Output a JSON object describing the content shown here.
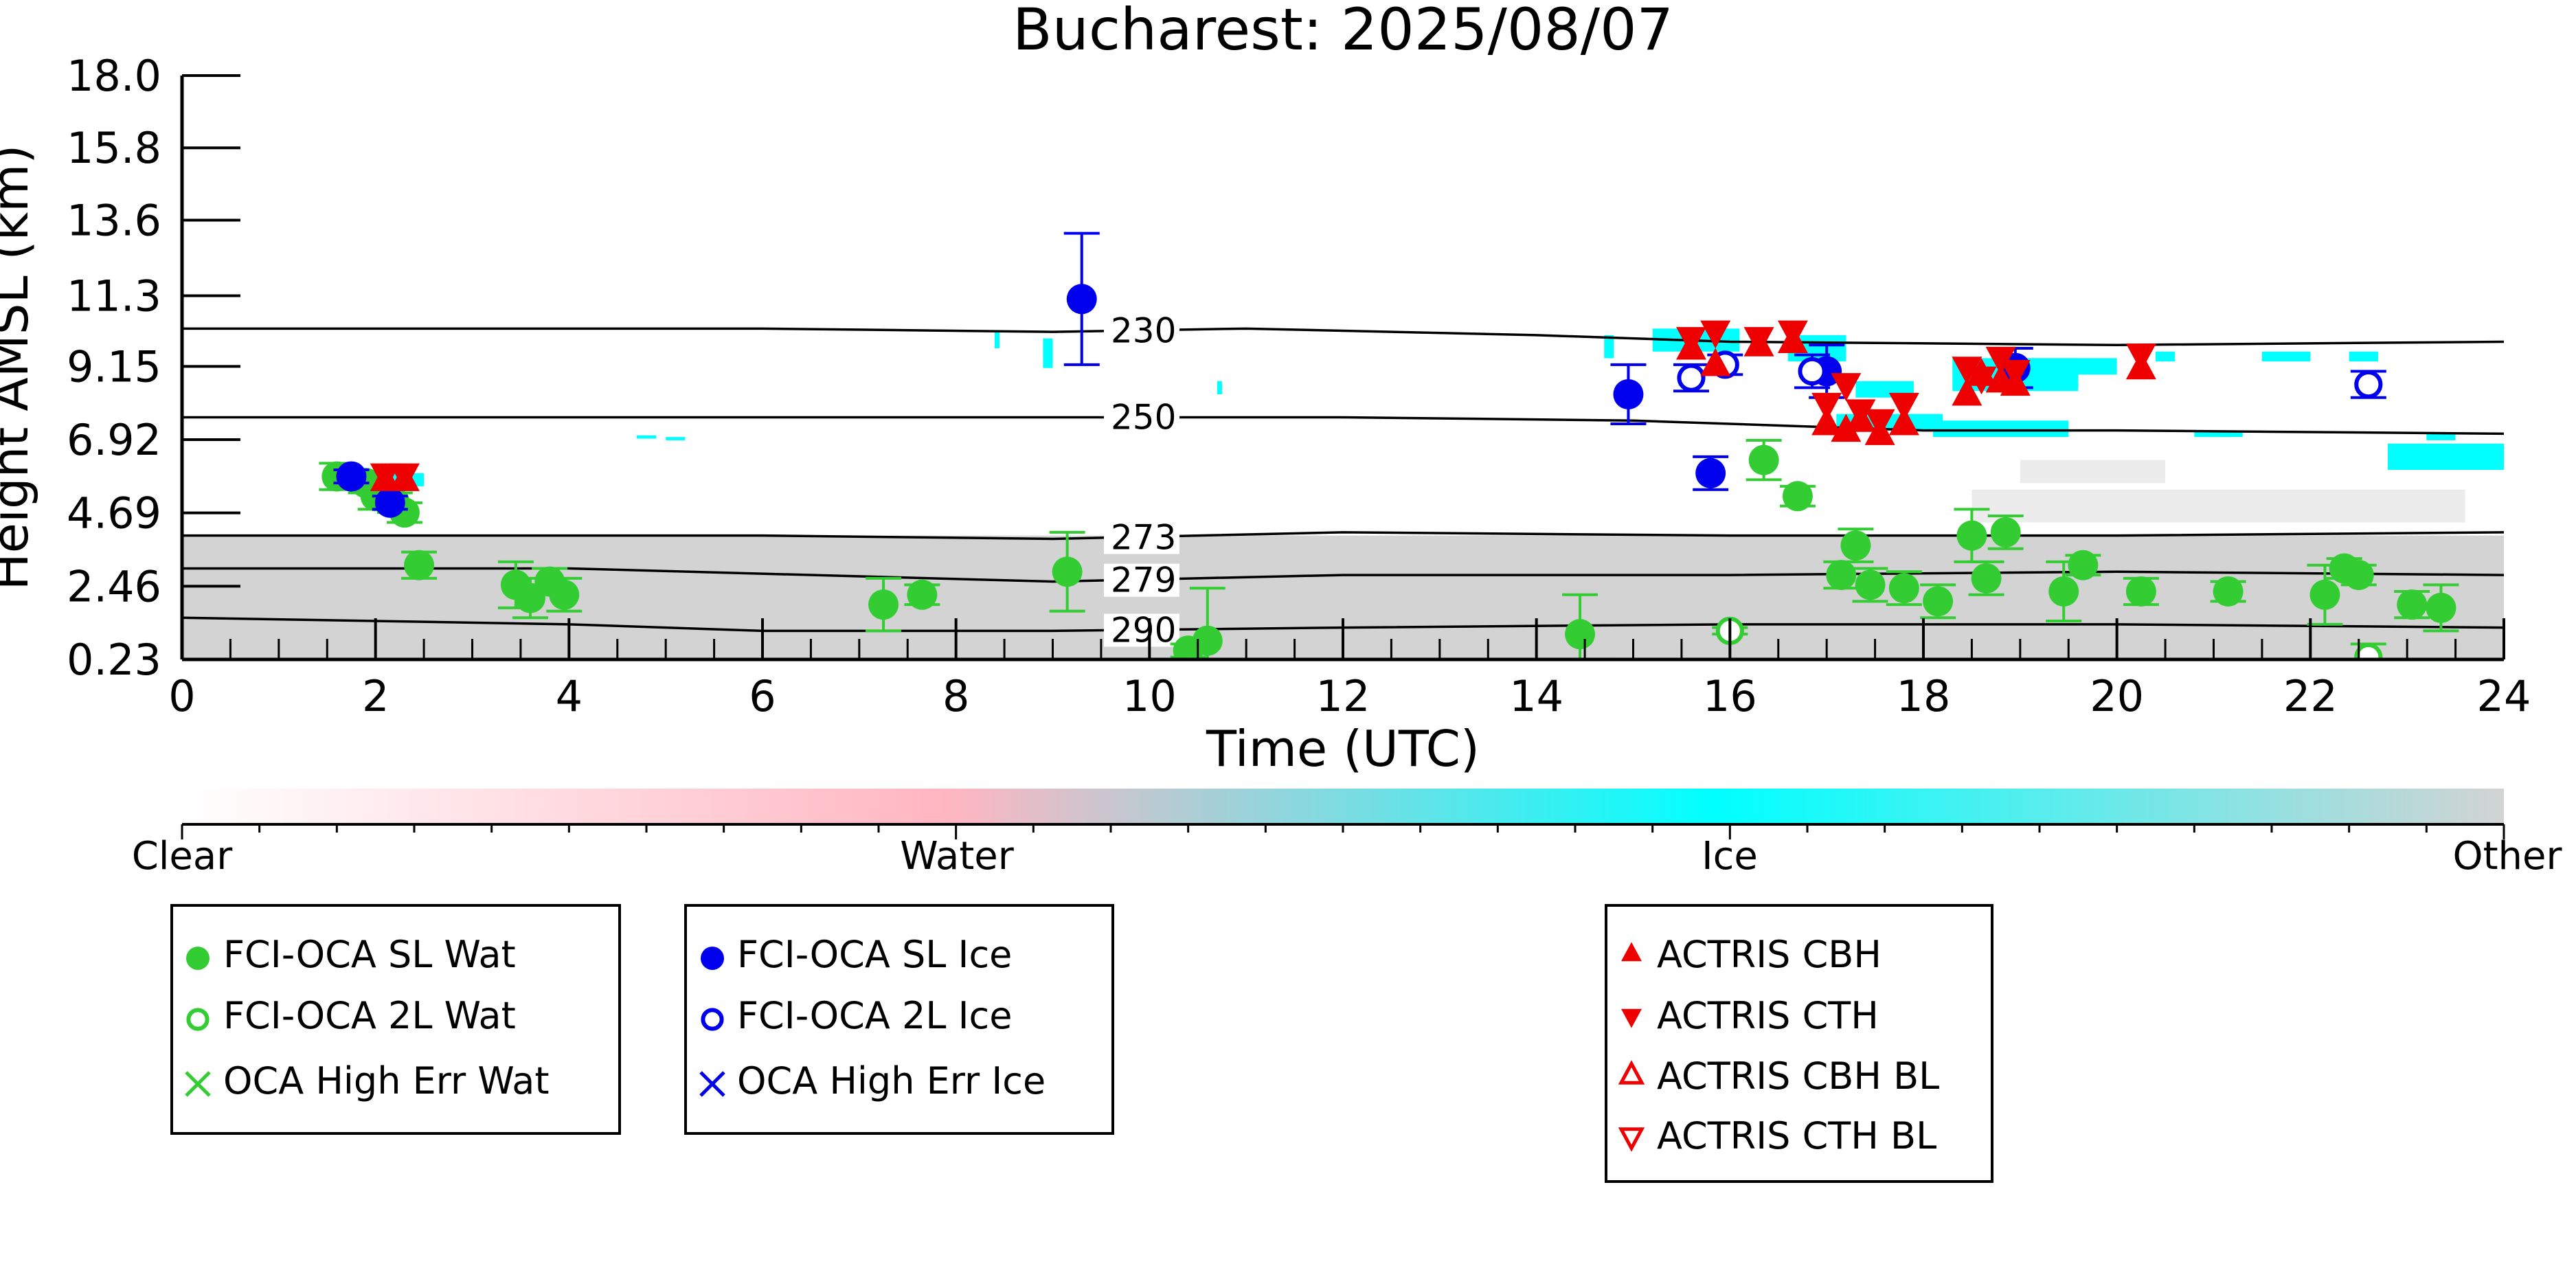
{
  "chart_data": {
    "type": "scatter",
    "title": "Bucharest: 2025/08/07",
    "xlabel": "Time (UTC)",
    "ylabel": "Height AMSL (km)",
    "xlim": [
      0,
      24
    ],
    "ylim": [
      0.23,
      18.0
    ],
    "x_ticks": [
      "0",
      "2",
      "4",
      "6",
      "8",
      "10",
      "12",
      "14",
      "16",
      "18",
      "20",
      "22",
      "24"
    ],
    "y_ticks": [
      "0.23",
      "2.46",
      "4.69",
      "6.92",
      "9.15",
      "11.3",
      "13.6",
      "15.8",
      "18.0"
    ],
    "colorbar": {
      "labels": [
        "Clear",
        "Water",
        "Ice",
        "Other"
      ],
      "colors": [
        "#ffffff",
        "#ffb6c1",
        "#00ffff",
        "#d3d3d3"
      ]
    },
    "colors": {
      "water": "#33cc33",
      "ice": "#0000ee",
      "actris": "#ee0000",
      "cloud_other": "#d3d3d3",
      "cloud_ice": "#00ffff"
    },
    "contours": [
      {
        "label": "230",
        "label_at": 9.6,
        "points": [
          [
            0,
            10.3
          ],
          [
            6,
            10.3
          ],
          [
            9,
            10.2
          ],
          [
            11,
            10.3
          ],
          [
            14,
            10.1
          ],
          [
            16,
            9.9
          ],
          [
            20,
            9.8
          ],
          [
            24,
            9.9
          ]
        ]
      },
      {
        "label": "250",
        "label_at": 9.6,
        "points": [
          [
            0,
            7.6
          ],
          [
            4,
            7.6
          ],
          [
            9,
            7.6
          ],
          [
            12,
            7.6
          ],
          [
            15,
            7.5
          ],
          [
            18,
            7.2
          ],
          [
            20,
            7.2
          ],
          [
            24,
            7.1
          ]
        ]
      },
      {
        "label": "273",
        "label_at": 9.6,
        "points": [
          [
            0,
            4.0
          ],
          [
            6,
            4.0
          ],
          [
            9,
            3.9
          ],
          [
            12,
            4.1
          ],
          [
            16,
            4.0
          ],
          [
            20,
            4.0
          ],
          [
            24,
            4.1
          ]
        ]
      },
      {
        "label": "279",
        "label_at": 9.6,
        "points": [
          [
            0,
            3.0
          ],
          [
            4,
            3.0
          ],
          [
            9,
            2.6
          ],
          [
            12,
            2.8
          ],
          [
            16,
            2.8
          ],
          [
            20,
            2.9
          ],
          [
            24,
            2.8
          ]
        ]
      },
      {
        "label": "290",
        "label_at": 9.6,
        "points": [
          [
            0,
            1.5
          ],
          [
            4,
            1.3
          ],
          [
            6,
            1.1
          ],
          [
            9,
            1.1
          ],
          [
            12,
            1.2
          ],
          [
            16,
            1.3
          ],
          [
            20,
            1.3
          ],
          [
            24,
            1.2
          ]
        ]
      }
    ],
    "series": [
      {
        "name": "FCI-OCA SL Wat",
        "marker": "filled-circle",
        "color": "#33cc33",
        "points": [
          [
            1.6,
            5.8,
            0.4
          ],
          [
            1.9,
            5.6,
            0.3
          ],
          [
            2.0,
            5.2,
            0.4
          ],
          [
            2.2,
            5.0,
            0.3
          ],
          [
            2.3,
            4.7,
            0.3
          ],
          [
            2.45,
            3.1,
            0.4
          ],
          [
            3.45,
            2.5,
            0.7
          ],
          [
            3.6,
            2.1,
            0.6
          ],
          [
            3.8,
            2.6,
            0.4
          ],
          [
            3.95,
            2.2,
            0.5
          ],
          [
            7.25,
            1.9,
            0.8
          ],
          [
            7.65,
            2.2,
            0.3
          ],
          [
            9.15,
            2.9,
            1.2
          ],
          [
            10.4,
            0.5,
            0.2
          ],
          [
            10.6,
            0.8,
            1.6
          ],
          [
            14.45,
            1.0,
            1.2
          ],
          [
            16.35,
            6.3,
            0.6
          ],
          [
            16.7,
            5.2,
            0.3
          ],
          [
            17.15,
            2.8,
            0.4
          ],
          [
            17.3,
            3.7,
            0.5
          ],
          [
            17.45,
            2.5,
            0.5
          ],
          [
            17.8,
            2.4,
            0.5
          ],
          [
            18.15,
            2.0,
            0.5
          ],
          [
            18.5,
            4.0,
            0.8
          ],
          [
            18.65,
            2.7,
            0.5
          ],
          [
            18.85,
            4.1,
            0.5
          ],
          [
            19.45,
            2.3,
            0.9
          ],
          [
            19.65,
            3.1,
            0.3
          ],
          [
            20.25,
            2.3,
            0.4
          ],
          [
            21.15,
            2.3,
            0.3
          ],
          [
            22.15,
            2.2,
            0.9
          ],
          [
            22.35,
            3.0,
            0.3
          ],
          [
            22.5,
            2.8,
            0.3
          ],
          [
            23.05,
            1.9,
            0.4
          ],
          [
            23.35,
            1.8,
            0.7
          ]
        ]
      },
      {
        "name": "FCI-OCA 2L Wat",
        "marker": "open-circle",
        "color": "#33cc33",
        "points": [
          [
            16.0,
            1.1,
            0.1
          ],
          [
            22.6,
            0.3,
            0.4
          ]
        ]
      },
      {
        "name": "OCA High Err Wat",
        "marker": "x",
        "color": "#33cc33",
        "points": []
      },
      {
        "name": "FCI-OCA SL Ice",
        "marker": "filled-circle",
        "color": "#0000ee",
        "points": [
          [
            1.75,
            5.8,
            0.2
          ],
          [
            2.15,
            5.0,
            0.2
          ],
          [
            9.3,
            11.2,
            2.0
          ],
          [
            14.95,
            8.3,
            0.9
          ],
          [
            15.8,
            5.9,
            0.5
          ],
          [
            17.0,
            9.0,
            0.8
          ],
          [
            18.95,
            9.1,
            0.6
          ]
        ]
      },
      {
        "name": "FCI-OCA 2L Ice",
        "marker": "open-circle",
        "color": "#0000ee",
        "points": [
          [
            15.6,
            8.8,
            0.4
          ],
          [
            15.95,
            9.2,
            0.3
          ],
          [
            16.85,
            9.0,
            0.5
          ],
          [
            22.6,
            8.6,
            0.4
          ]
        ]
      },
      {
        "name": "OCA High Err Ice",
        "marker": "x",
        "color": "#0000ee",
        "points": []
      },
      {
        "name": "ACTRIS CBH",
        "marker": "triangle-up",
        "color": "#ee0000",
        "points": [
          [
            2.1,
            5.7
          ],
          [
            2.3,
            5.7
          ],
          [
            15.6,
            9.7
          ],
          [
            15.85,
            9.2
          ],
          [
            16.3,
            9.8
          ],
          [
            16.65,
            9.9
          ],
          [
            17.0,
            7.4
          ],
          [
            17.2,
            7.2
          ],
          [
            17.35,
            7.5
          ],
          [
            17.55,
            7.1
          ],
          [
            17.8,
            7.4
          ],
          [
            18.45,
            8.3
          ],
          [
            18.6,
            8.9
          ],
          [
            18.8,
            8.7
          ],
          [
            18.95,
            8.6
          ],
          [
            20.25,
            9.1
          ]
        ]
      },
      {
        "name": "ACTRIS CTH",
        "marker": "triangle-down",
        "color": "#ee0000",
        "points": [
          [
            2.1,
            5.85
          ],
          [
            2.3,
            5.85
          ],
          [
            15.6,
            10.0
          ],
          [
            15.85,
            10.2
          ],
          [
            16.3,
            10.0
          ],
          [
            16.65,
            10.2
          ],
          [
            17.0,
            8.0
          ],
          [
            17.2,
            8.6
          ],
          [
            17.35,
            7.8
          ],
          [
            17.55,
            7.5
          ],
          [
            17.8,
            8.0
          ],
          [
            18.45,
            9.1
          ],
          [
            18.6,
            8.8
          ],
          [
            18.8,
            9.4
          ],
          [
            18.95,
            9.0
          ],
          [
            20.25,
            9.5
          ]
        ]
      },
      {
        "name": "ACTRIS CBH BL",
        "marker": "open-triangle-up",
        "color": "#ee0000",
        "points": []
      },
      {
        "name": "ACTRIS CTH BL",
        "marker": "open-triangle-down",
        "color": "#ee0000",
        "points": []
      }
    ],
    "clouds": {
      "other": [
        [
          0,
          0.23,
          24,
          4.0
        ],
        [
          14.8,
          0.23,
          24,
          2.7
        ]
      ],
      "ice": [
        [
          1.9,
          5.5,
          2.5,
          5.9
        ],
        [
          4.7,
          6.95,
          4.9,
          7.05
        ],
        [
          5.0,
          6.9,
          5.2,
          7.0
        ],
        [
          8.4,
          9.7,
          8.45,
          10.2
        ],
        [
          8.9,
          9.1,
          9.0,
          10.0
        ],
        [
          10.7,
          8.3,
          10.75,
          8.7
        ],
        [
          14.7,
          9.4,
          14.8,
          10.1
        ],
        [
          15.2,
          9.6,
          16.1,
          10.3
        ],
        [
          16.6,
          9.3,
          17.2,
          10.1
        ],
        [
          17.1,
          7.2,
          18.2,
          7.7
        ],
        [
          17.3,
          8.2,
          17.9,
          8.7
        ],
        [
          18.1,
          7.0,
          19.5,
          7.5
        ],
        [
          18.3,
          8.4,
          19.6,
          9.4
        ],
        [
          19.1,
          8.9,
          20.0,
          9.4
        ],
        [
          20.4,
          9.3,
          20.6,
          9.6
        ],
        [
          20.8,
          7.0,
          21.3,
          7.2
        ],
        [
          21.5,
          9.3,
          22.0,
          9.6
        ],
        [
          22.4,
          9.3,
          22.7,
          9.6
        ],
        [
          22.8,
          6.0,
          24.0,
          6.8
        ],
        [
          23.2,
          6.9,
          23.5,
          7.1
        ]
      ],
      "other_upper": [
        [
          18.5,
          4.4,
          23.6,
          5.4
        ],
        [
          19.0,
          5.6,
          20.5,
          6.3
        ]
      ]
    }
  },
  "legends": [
    {
      "items": [
        {
          "marker": "filled-circle",
          "color": "#33cc33",
          "label": "FCI-OCA SL Wat"
        },
        {
          "marker": "open-circle",
          "color": "#33cc33",
          "label": "FCI-OCA 2L Wat"
        },
        {
          "marker": "x",
          "color": "#33cc33",
          "label": "OCA High Err Wat"
        }
      ]
    },
    {
      "items": [
        {
          "marker": "filled-circle",
          "color": "#0000ee",
          "label": "FCI-OCA SL Ice"
        },
        {
          "marker": "open-circle",
          "color": "#0000ee",
          "label": "FCI-OCA 2L Ice"
        },
        {
          "marker": "x",
          "color": "#0000ee",
          "label": "OCA High Err Ice"
        }
      ]
    },
    {
      "items": [
        {
          "marker": "triangle-up",
          "color": "#ee0000",
          "label": "ACTRIS CBH"
        },
        {
          "marker": "triangle-down",
          "color": "#ee0000",
          "label": "ACTRIS CTH"
        },
        {
          "marker": "open-triangle-up",
          "color": "#ee0000",
          "label": "ACTRIS CBH BL"
        },
        {
          "marker": "open-triangle-down",
          "color": "#ee0000",
          "label": "ACTRIS CTH BL"
        }
      ]
    }
  ]
}
